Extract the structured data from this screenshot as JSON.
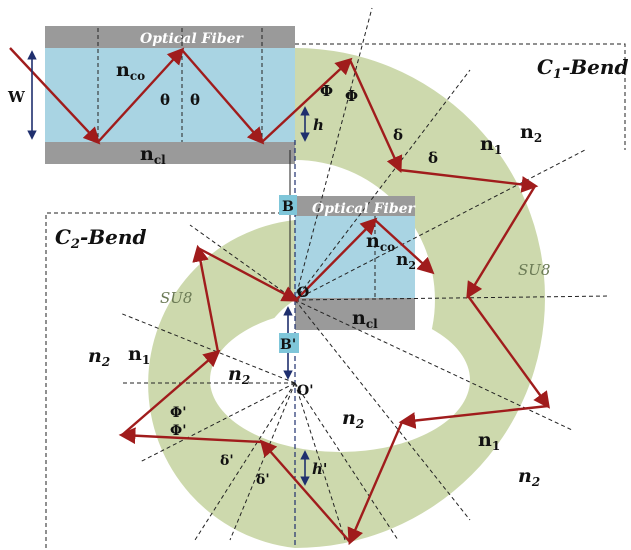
{
  "labels": {
    "optical_fiber_1": "Optical Fiber",
    "optical_fiber_2": "Optical Fiber",
    "w": "W",
    "nco_1": "n",
    "nco_1_sub": "co",
    "ncl_1": "n",
    "ncl_1_sub": "cl",
    "theta_1": "θ",
    "theta_2": "θ",
    "phi_1": "Φ",
    "phi_2": "Φ",
    "h": "h",
    "c1_bend": "C",
    "c1_bend_sub": "1",
    "c1_bend_suffix": "-Bend",
    "c2_bend": "C",
    "c2_bend_sub": "2",
    "c2_bend_suffix": "-Bend",
    "delta_1": "δ",
    "delta_2": "δ",
    "n1_top": "n",
    "n1_top_sub": "1",
    "n2_top": "n",
    "n2_top_sub": "2",
    "su8_right": "SU8",
    "su8_left": "SU8",
    "b_top": "B",
    "b_bottom": "B'",
    "o": "O",
    "o_prime": "O'",
    "nco_2": "n",
    "nco_2_sub": "co",
    "n2_inner_fiber": "n",
    "n2_inner_fiber_sub": "2",
    "ncl_2": "n",
    "ncl_2_sub": "cl",
    "n2_left": "n",
    "n2_left_sub": "2",
    "n1_left": "n",
    "n1_left_sub": "1",
    "n2_inner_left": "n",
    "n2_inner_left_sub": "2",
    "phi_p1": "Φ'",
    "phi_p2": "Φ'",
    "n2_center": "n",
    "n2_center_sub": "2",
    "delta_p1": "δ'",
    "delta_p2": "δ'",
    "h_prime": "h'",
    "n1_bottom": "n",
    "n1_bottom_sub": "1",
    "n2_bottom": "n",
    "n2_bottom_sub": "2"
  },
  "colors": {
    "core": "#a9d4e3",
    "cladding": "#9a9a9a",
    "su8": "#cdd9ad",
    "ray": "#a01c1c",
    "guide": "#222222",
    "b_box": "#7fc6d9",
    "dim_arrow": "#1f2f6e"
  }
}
